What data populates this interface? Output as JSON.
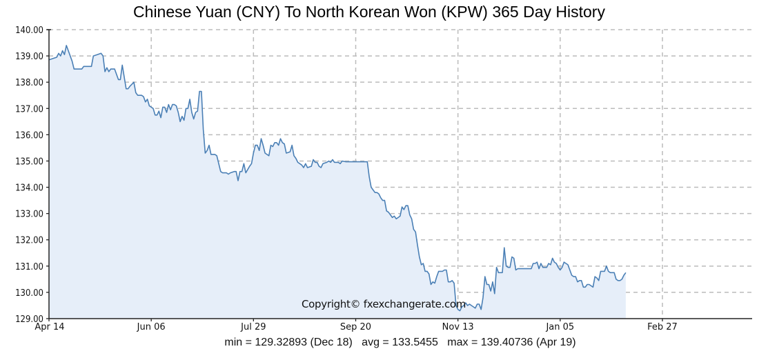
{
  "title": "Chinese Yuan (CNY) To North Korean Won (KPW) 365 Day History",
  "copyright": "Copyright© fxexchangerate.com",
  "stats": {
    "min_label": "min = 129.32893 (Dec 18)",
    "avg_label": "avg = 133.5455",
    "max_label": "max = 139.40736 (Apr 19)",
    "full": "min = 129.32893 (Dec 18)   avg = 133.5455   max = 139.40736 (Apr 19)"
  },
  "colors": {
    "line": "#4a7fb5",
    "fill": "#e6eef9",
    "grid": "#bbbbbb",
    "axis": "#222222"
  },
  "chart_data": {
    "type": "area",
    "title": "Chinese Yuan (CNY) To North Korean Won (KPW) 365 Day History",
    "xlabel": "",
    "ylabel": "",
    "ylim": [
      129.0,
      140.0
    ],
    "grid": true,
    "legend": null,
    "y_ticks": [
      "129.00",
      "130.00",
      "131.00",
      "132.00",
      "133.00",
      "134.00",
      "135.00",
      "136.00",
      "137.00",
      "138.00",
      "139.00",
      "140.00"
    ],
    "x_ticks": [
      "Apr 14",
      "Jun 06",
      "Jul 29",
      "Sep 20",
      "Nov 13",
      "Jan 05",
      "Feb 27"
    ],
    "x_tick_day_index": [
      0,
      53,
      106,
      159,
      212,
      265,
      318
    ],
    "annotations": [
      "Copyright© fxexchangerate.com"
    ],
    "summary": {
      "min": 129.32893,
      "min_date": "Dec 18",
      "avg": 133.5455,
      "max": 139.40736,
      "max_date": "Apr 19"
    },
    "points": [
      [
        0,
        138.85
      ],
      [
        2,
        138.9
      ],
      [
        4,
        138.95
      ],
      [
        5,
        139.1
      ],
      [
        6,
        139.0
      ],
      [
        7,
        139.2
      ],
      [
        8,
        139.05
      ],
      [
        9,
        139.4
      ],
      [
        10,
        139.2
      ],
      [
        12,
        138.8
      ],
      [
        13,
        138.5
      ],
      [
        15,
        138.5
      ],
      [
        17,
        138.5
      ],
      [
        18,
        138.6
      ],
      [
        20,
        138.6
      ],
      [
        22,
        138.6
      ],
      [
        23,
        139.0
      ],
      [
        25,
        139.05
      ],
      [
        27,
        139.1
      ],
      [
        28,
        139.0
      ],
      [
        29,
        138.4
      ],
      [
        30,
        138.55
      ],
      [
        31,
        138.4
      ],
      [
        32,
        138.5
      ],
      [
        34,
        138.5
      ],
      [
        36,
        138.1
      ],
      [
        37,
        138.1
      ],
      [
        38,
        138.65
      ],
      [
        40,
        137.75
      ],
      [
        41,
        137.75
      ],
      [
        42,
        137.85
      ],
      [
        44,
        138.0
      ],
      [
        45,
        137.6
      ],
      [
        46,
        137.5
      ],
      [
        48,
        137.5
      ],
      [
        49,
        137.45
      ],
      [
        50,
        137.25
      ],
      [
        51,
        137.35
      ],
      [
        52,
        137.1
      ],
      [
        53,
        137.05
      ],
      [
        54,
        137.0
      ],
      [
        55,
        136.75
      ],
      [
        56,
        136.75
      ],
      [
        57,
        136.9
      ],
      [
        58,
        136.65
      ],
      [
        59,
        137.05
      ],
      [
        60,
        137.05
      ],
      [
        61,
        136.85
      ],
      [
        62,
        137.15
      ],
      [
        63,
        136.95
      ],
      [
        64,
        137.15
      ],
      [
        65,
        137.15
      ],
      [
        66,
        137.1
      ],
      [
        67,
        136.85
      ],
      [
        68,
        136.5
      ],
      [
        69,
        136.7
      ],
      [
        70,
        136.55
      ],
      [
        71,
        137.0
      ],
      [
        72,
        137.0
      ],
      [
        73,
        137.35
      ],
      [
        74,
        136.85
      ],
      [
        75,
        136.6
      ],
      [
        76,
        136.85
      ],
      [
        77,
        136.9
      ],
      [
        78,
        137.65
      ],
      [
        79,
        137.65
      ],
      [
        80,
        136.2
      ],
      [
        81,
        135.3
      ],
      [
        82,
        135.4
      ],
      [
        83,
        135.6
      ],
      [
        84,
        135.25
      ],
      [
        86,
        135.25
      ],
      [
        87,
        135.2
      ],
      [
        88,
        134.9
      ],
      [
        89,
        134.6
      ],
      [
        90,
        134.55
      ],
      [
        92,
        134.55
      ],
      [
        93,
        134.5
      ],
      [
        94,
        134.55
      ],
      [
        96,
        134.6
      ],
      [
        97,
        134.6
      ],
      [
        98,
        134.25
      ],
      [
        99,
        134.6
      ],
      [
        100,
        134.6
      ],
      [
        101,
        134.9
      ],
      [
        102,
        134.55
      ],
      [
        104,
        134.8
      ],
      [
        105,
        134.9
      ],
      [
        106,
        135.3
      ],
      [
        107,
        135.6
      ],
      [
        108,
        135.6
      ],
      [
        109,
        135.4
      ],
      [
        110,
        135.85
      ],
      [
        111,
        135.6
      ],
      [
        112,
        135.3
      ],
      [
        114,
        135.2
      ],
      [
        115,
        135.6
      ],
      [
        116,
        135.55
      ],
      [
        117,
        135.7
      ],
      [
        118,
        135.7
      ],
      [
        119,
        135.6
      ],
      [
        120,
        135.85
      ],
      [
        121,
        135.7
      ],
      [
        122,
        135.65
      ],
      [
        123,
        135.3
      ],
      [
        125,
        135.35
      ],
      [
        126,
        135.6
      ],
      [
        127,
        135.2
      ],
      [
        128,
        135.1
      ],
      [
        129,
        134.95
      ],
      [
        131,
        134.85
      ],
      [
        132,
        134.75
      ],
      [
        133,
        134.9
      ],
      [
        134,
        134.75
      ],
      [
        136,
        134.8
      ],
      [
        137,
        135.05
      ],
      [
        138,
        134.95
      ],
      [
        139,
        134.95
      ],
      [
        140,
        134.8
      ],
      [
        141,
        134.75
      ],
      [
        142,
        134.9
      ],
      [
        144,
        134.95
      ],
      [
        145,
        135.0
      ],
      [
        146,
        134.95
      ],
      [
        147,
        135.05
      ],
      [
        148,
        134.95
      ],
      [
        150,
        134.95
      ],
      [
        151,
        134.9
      ],
      [
        152,
        135.0
      ],
      [
        154,
        134.97
      ],
      [
        160,
        134.97
      ],
      [
        165,
        134.97
      ],
      [
        166,
        134.4
      ],
      [
        167,
        134.0
      ],
      [
        168,
        133.9
      ],
      [
        169,
        133.8
      ],
      [
        170,
        133.8
      ],
      [
        171,
        133.75
      ],
      [
        172,
        133.6
      ],
      [
        173,
        133.5
      ],
      [
        174,
        133.5
      ],
      [
        175,
        133.1
      ],
      [
        176,
        133.05
      ],
      [
        177,
        132.95
      ],
      [
        178,
        132.85
      ],
      [
        179,
        132.9
      ],
      [
        180,
        132.8
      ],
      [
        181,
        132.85
      ],
      [
        182,
        132.9
      ],
      [
        183,
        133.25
      ],
      [
        184,
        133.15
      ],
      [
        185,
        133.3
      ],
      [
        186,
        133.3
      ],
      [
        187,
        132.95
      ],
      [
        188,
        132.8
      ],
      [
        189,
        132.4
      ],
      [
        190,
        132.3
      ],
      [
        191,
        131.8
      ],
      [
        192,
        131.35
      ],
      [
        193,
        131.05
      ],
      [
        194,
        131.1
      ],
      [
        195,
        130.8
      ],
      [
        196,
        130.8
      ],
      [
        197,
        130.7
      ],
      [
        198,
        130.3
      ],
      [
        199,
        130.4
      ],
      [
        200,
        130.35
      ],
      [
        201,
        130.6
      ],
      [
        202,
        130.8
      ],
      [
        203,
        130.8
      ],
      [
        204,
        130.8
      ],
      [
        205,
        130.85
      ],
      [
        206,
        130.85
      ],
      [
        207,
        130.4
      ],
      [
        208,
        130.4
      ],
      [
        209,
        130.45
      ],
      [
        210,
        130.35
      ],
      [
        211,
        129.5
      ],
      [
        212,
        129.35
      ],
      [
        213,
        129.3
      ],
      [
        214,
        129.45
      ],
      [
        215,
        129.5
      ],
      [
        216,
        129.6
      ],
      [
        217,
        129.5
      ],
      [
        218,
        129.55
      ],
      [
        219,
        129.5
      ],
      [
        220,
        129.45
      ],
      [
        221,
        129.4
      ],
      [
        222,
        129.55
      ],
      [
        223,
        129.55
      ],
      [
        224,
        129.35
      ],
      [
        225,
        129.8
      ],
      [
        226,
        130.6
      ],
      [
        227,
        130.3
      ],
      [
        228,
        130.3
      ],
      [
        229,
        130.05
      ],
      [
        230,
        130.4
      ],
      [
        231,
        129.95
      ],
      [
        232,
        130.95
      ],
      [
        233,
        130.75
      ],
      [
        234,
        130.75
      ],
      [
        235,
        130.75
      ],
      [
        236,
        131.7
      ],
      [
        237,
        131.0
      ],
      [
        238,
        130.95
      ],
      [
        239,
        130.95
      ],
      [
        240,
        131.35
      ],
      [
        241,
        131.3
      ],
      [
        242,
        130.85
      ],
      [
        243,
        130.9
      ],
      [
        250,
        130.9
      ],
      [
        251,
        131.1
      ],
      [
        252,
        131.1
      ],
      [
        253,
        131.15
      ],
      [
        254,
        130.9
      ],
      [
        255,
        131.1
      ],
      [
        256,
        130.95
      ],
      [
        257,
        130.95
      ],
      [
        258,
        130.95
      ],
      [
        259,
        131.1
      ],
      [
        260,
        131.05
      ],
      [
        261,
        131.3
      ],
      [
        262,
        131.15
      ],
      [
        263,
        131.1
      ],
      [
        264,
        130.95
      ],
      [
        265,
        130.85
      ],
      [
        266,
        130.95
      ],
      [
        267,
        131.15
      ],
      [
        268,
        131.1
      ],
      [
        269,
        131.05
      ],
      [
        270,
        130.85
      ],
      [
        271,
        130.65
      ],
      [
        272,
        130.6
      ],
      [
        273,
        130.6
      ],
      [
        274,
        130.4
      ],
      [
        275,
        130.45
      ],
      [
        276,
        130.45
      ],
      [
        277,
        130.2
      ],
      [
        278,
        130.2
      ],
      [
        279,
        130.3
      ],
      [
        280,
        130.3
      ],
      [
        281,
        130.25
      ],
      [
        282,
        130.2
      ],
      [
        283,
        130.6
      ],
      [
        284,
        130.55
      ],
      [
        285,
        130.45
      ],
      [
        286,
        130.8
      ],
      [
        287,
        130.8
      ],
      [
        288,
        130.8
      ],
      [
        289,
        131.0
      ],
      [
        290,
        130.8
      ],
      [
        291,
        130.75
      ],
      [
        293,
        130.75
      ],
      [
        294,
        130.5
      ],
      [
        295,
        130.45
      ],
      [
        296,
        130.45
      ],
      [
        297,
        130.5
      ],
      [
        298,
        130.65
      ],
      [
        299,
        130.75
      ]
    ]
  }
}
